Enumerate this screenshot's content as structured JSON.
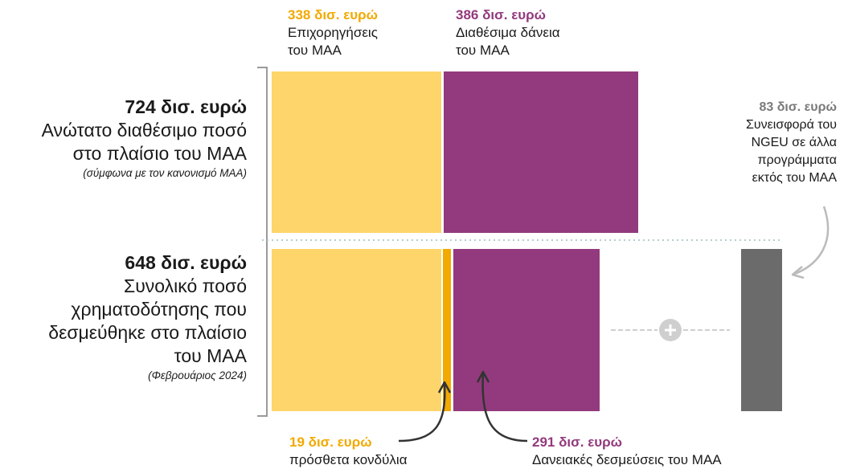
{
  "colors": {
    "grants": "#fdd56a",
    "loans": "#923a7d",
    "grants_accent": "#f2a900",
    "loans_accent": "#923a7d",
    "ngeu": "#6b6b6b",
    "dots": "#b9cbcf",
    "bracket": "#9a9a9a",
    "arrow": "#333333",
    "arrow_light": "#bbbbbb",
    "plus": "#cfcfcf"
  },
  "top": {
    "grants": {
      "amount": "338 δισ. ευρώ",
      "line1": "Επιχορηγήσεις",
      "line2": "του ΜΑΑ"
    },
    "loans": {
      "amount": "386 δισ. ευρώ",
      "line1": "Διαθέσιμα δάνεια",
      "line2": "του ΜΑΑ"
    }
  },
  "left_top": {
    "amount": "724 δισ. ευρώ",
    "line1": "Ανώτατο διαθέσιμο ποσό",
    "line2": "στο πλαίσιο του ΜΑΑ",
    "note": "(σύμφωνα με τον κανονισμό ΜΑΑ)"
  },
  "left_bottom": {
    "amount": "648 δισ. ευρώ",
    "line1": "Συνολικό ποσό",
    "line2": "χρηματοδότησης που",
    "line3": "δεσμεύθηκε στο πλαίσιο",
    "line4": "του ΜΑΑ",
    "note": "(Φεβρουάριος 2024)"
  },
  "ngeu": {
    "amount": "83 δισ. ευρώ",
    "line1": "Συνεισφορά του",
    "line2": "NGEU σε άλλα",
    "line3": "προγράμματα",
    "line4": "εκτός του ΜΑΑ"
  },
  "bottom": {
    "additional": {
      "amount": "19 δισ. ευρώ",
      "desc": "πρόσθετα κονδύλια"
    },
    "loans_committed": {
      "amount": "291 δισ. ευρώ",
      "desc": "Δανειακές δεσμεύσεις του ΜΑΑ"
    }
  }
}
